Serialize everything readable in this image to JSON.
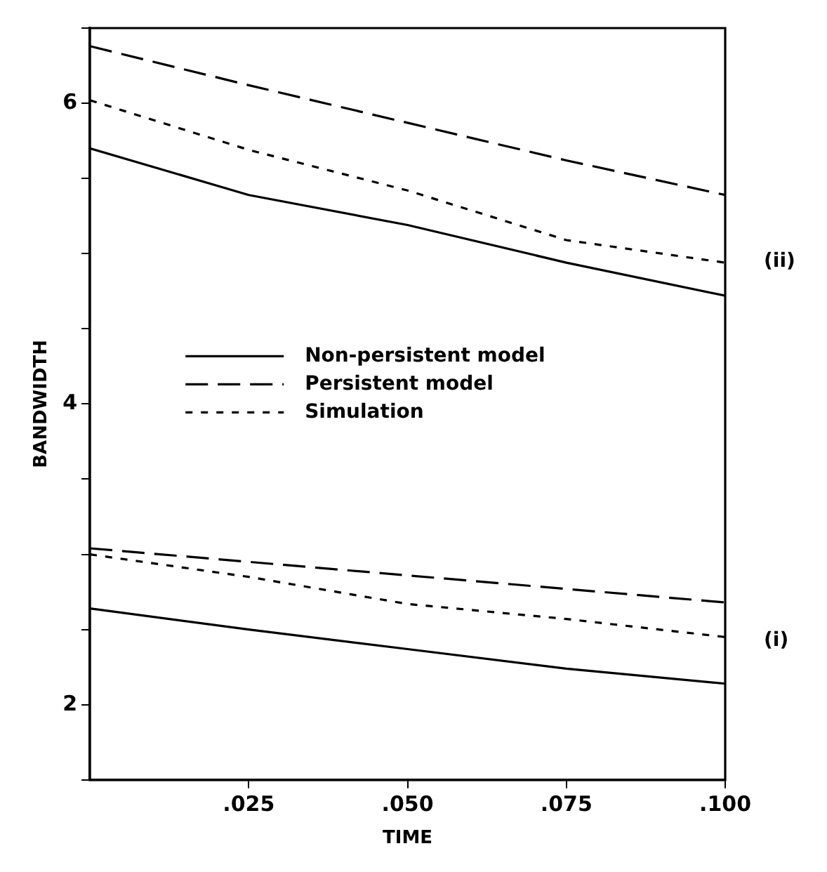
{
  "chart_data": {
    "type": "line",
    "xlabel": "TIME",
    "ylabel": "BANDWIDTH",
    "x": [
      0,
      0.025,
      0.05,
      0.075,
      0.1
    ],
    "xlim": [
      0,
      0.1
    ],
    "xticks": [
      {
        "value": 0.025,
        "label": ".025"
      },
      {
        "value": 0.05,
        "label": ".050"
      },
      {
        "value": 0.075,
        "label": ".075"
      },
      {
        "value": 0.1,
        "label": ".100"
      }
    ],
    "ylim": [
      1.5,
      6.5
    ],
    "yticks": [
      {
        "value": 1.5,
        "label": null
      },
      2,
      {
        "value": 2.5,
        "label": null
      },
      {
        "value": 3,
        "label": null
      },
      {
        "value": 3.5,
        "label": null
      },
      4,
      {
        "value": 4.5,
        "label": null
      },
      {
        "value": 5,
        "label": null
      },
      {
        "value": 5.5,
        "label": null
      },
      6,
      {
        "value": 6.5,
        "label": null
      }
    ],
    "grid": false,
    "legend": "left",
    "series": [
      {
        "name": "Non-persistent model",
        "color": "#000000",
        "line_style": "solid",
        "values": [
          5.7,
          5.39,
          5.19,
          4.94,
          4.72
        ]
      },
      {
        "name": "Persistent model",
        "color": "#000000",
        "line_style": "dashed",
        "values": [
          6.38,
          6.12,
          5.87,
          5.62,
          5.39
        ]
      },
      {
        "name": "Simulation",
        "color": "#000000",
        "line_style": "dotted",
        "values": [
          6.02,
          5.69,
          5.42,
          5.09,
          4.94
        ]
      },
      {
        "color": "#000000",
        "line_style": "solid",
        "values": [
          2.64,
          2.5,
          2.37,
          2.24,
          2.14
        ]
      },
      {
        "color": "#000000",
        "line_style": "dashed",
        "values": [
          3.04,
          2.95,
          2.86,
          2.77,
          2.68
        ]
      },
      {
        "color": "#000000",
        "line_style": "dotted",
        "values": [
          3.0,
          2.85,
          2.67,
          2.57,
          2.45
        ]
      }
    ],
    "annotations": [
      "(ii)",
      "(i)"
    ]
  }
}
